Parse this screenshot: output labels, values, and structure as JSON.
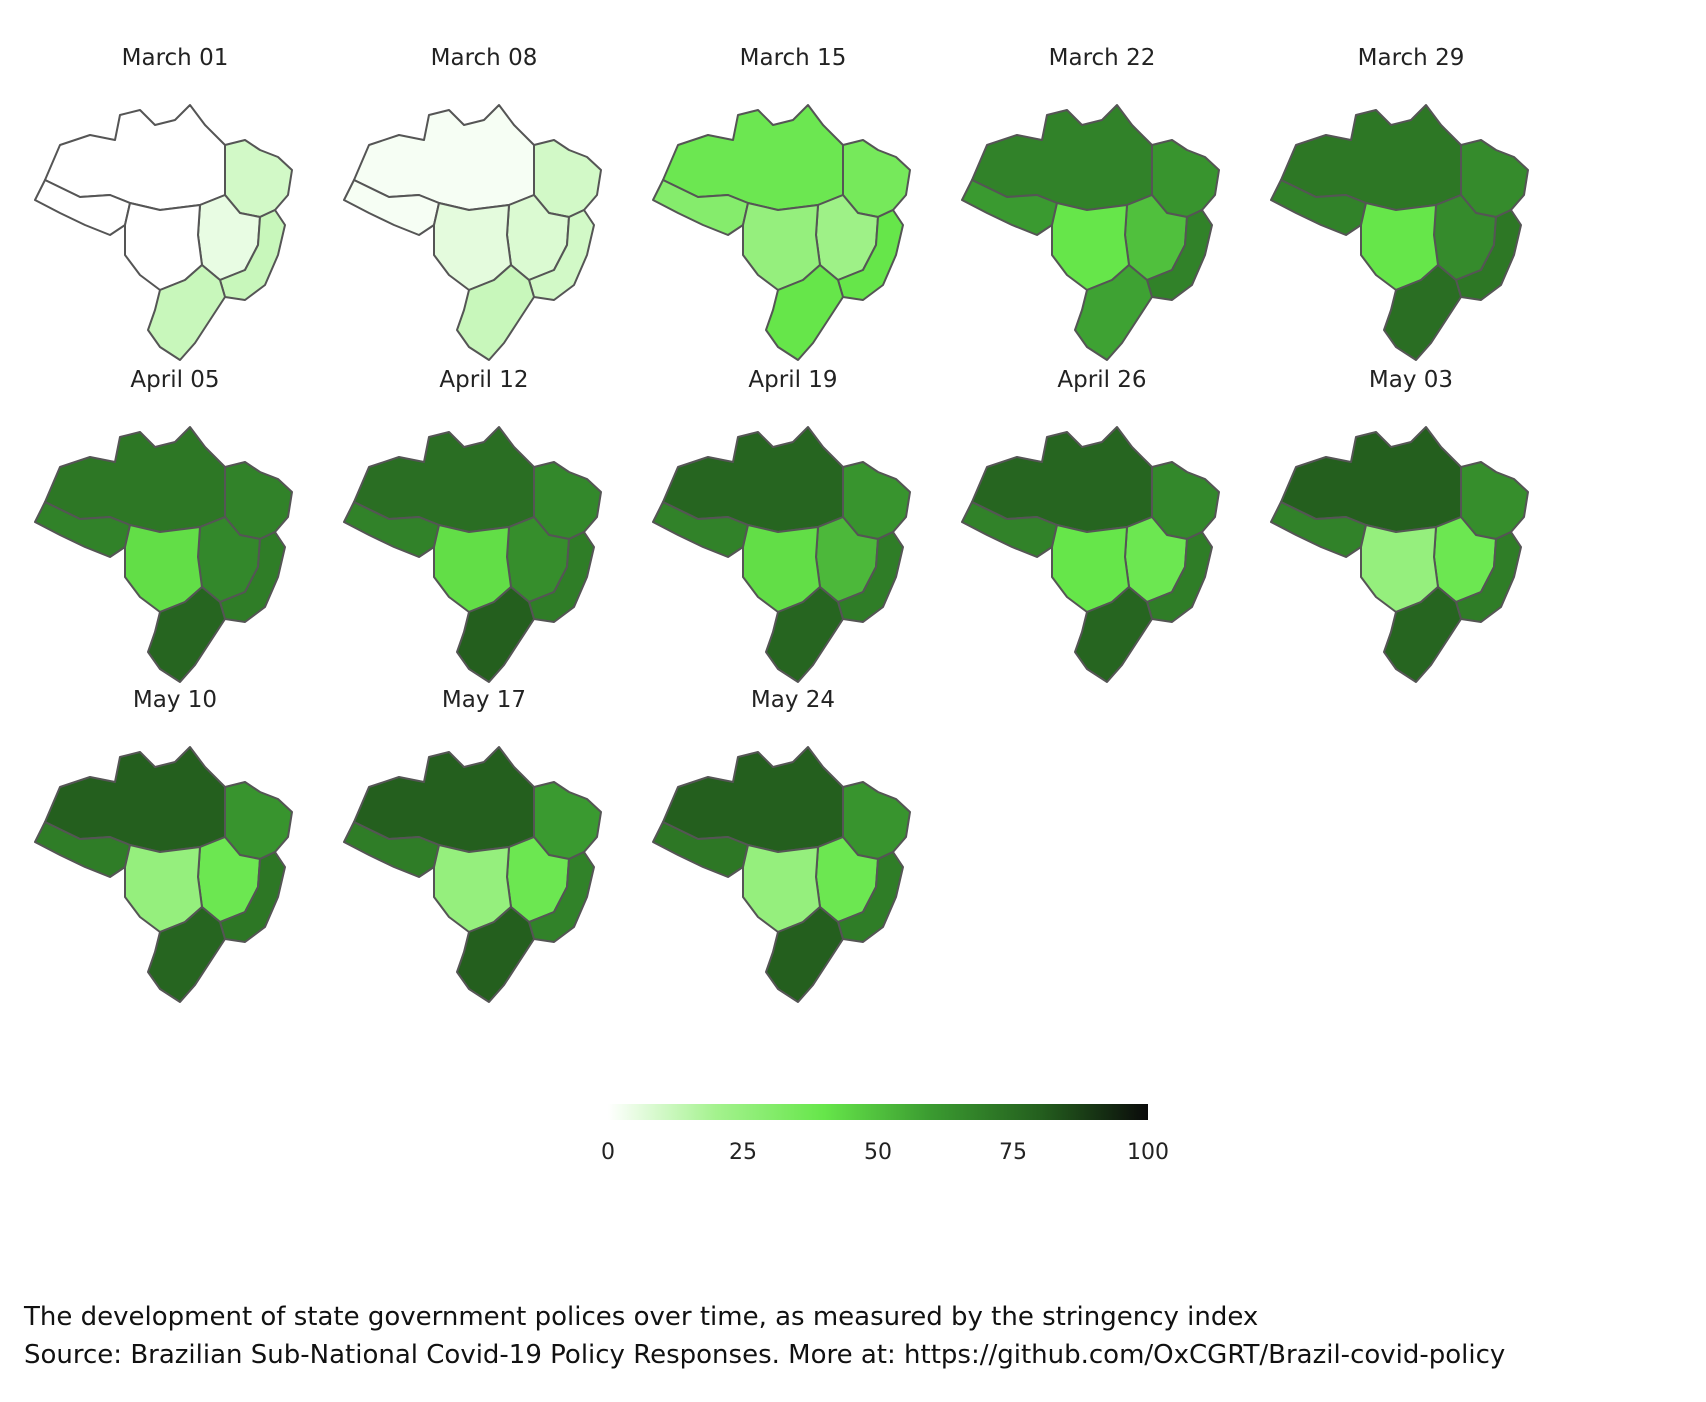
{
  "figure": {
    "colors": {
      "scale": [
        "#ffffff",
        "#a4f28e",
        "#66e64a",
        "#3a9a30",
        "#245f1e",
        "#0a0a0a"
      ],
      "outline": "#555555"
    },
    "legend": {
      "ticks": [
        "0",
        "25",
        "50",
        "75",
        "100"
      ],
      "min": 0,
      "max": 100
    },
    "panels": [
      {
        "title": "March 01",
        "values": {
          "north": 0,
          "northwest": 0,
          "ne": 10,
          "central": 5,
          "center_west": 0,
          "southeast": 12,
          "south": 12
        }
      },
      {
        "title": "March 08",
        "values": {
          "north": 2,
          "northwest": 2,
          "ne": 10,
          "central": 8,
          "center_west": 6,
          "southeast": 10,
          "south": 12
        }
      },
      {
        "title": "March 15",
        "values": {
          "north": 38,
          "northwest": 30,
          "ne": 35,
          "central": 22,
          "center_west": 25,
          "southeast": 40,
          "south": 40
        }
      },
      {
        "title": "March 22",
        "values": {
          "north": 68,
          "northwest": 60,
          "ne": 62,
          "central": 50,
          "center_west": 40,
          "southeast": 68,
          "south": 58
        }
      },
      {
        "title": "March 29",
        "values": {
          "north": 72,
          "northwest": 68,
          "ne": 65,
          "central": 65,
          "center_west": 40,
          "southeast": 72,
          "south": 75
        }
      },
      {
        "title": "April 05",
        "values": {
          "north": 72,
          "northwest": 68,
          "ne": 68,
          "central": 66,
          "center_west": 42,
          "southeast": 70,
          "south": 78
        }
      },
      {
        "title": "April 12",
        "values": {
          "north": 75,
          "northwest": 68,
          "ne": 66,
          "central": 64,
          "center_west": 42,
          "southeast": 70,
          "south": 80
        }
      },
      {
        "title": "April 19",
        "values": {
          "north": 78,
          "northwest": 68,
          "ne": 62,
          "central": 52,
          "center_west": 42,
          "southeast": 70,
          "south": 78
        }
      },
      {
        "title": "April 26",
        "values": {
          "north": 78,
          "northwest": 68,
          "ne": 66,
          "central": 38,
          "center_west": 40,
          "southeast": 70,
          "south": 78
        }
      },
      {
        "title": "May 03",
        "values": {
          "north": 80,
          "northwest": 68,
          "ne": 64,
          "central": 38,
          "center_west": 25,
          "southeast": 70,
          "south": 78
        }
      },
      {
        "title": "May 10",
        "values": {
          "north": 80,
          "northwest": 70,
          "ne": 62,
          "central": 38,
          "center_west": 25,
          "southeast": 72,
          "south": 78
        }
      },
      {
        "title": "May 17",
        "values": {
          "north": 80,
          "northwest": 70,
          "ne": 60,
          "central": 38,
          "center_west": 25,
          "southeast": 68,
          "south": 80
        }
      },
      {
        "title": "May 24",
        "values": {
          "north": 80,
          "northwest": 72,
          "ne": 62,
          "central": 38,
          "center_west": 25,
          "southeast": 70,
          "south": 80
        }
      }
    ]
  },
  "caption": {
    "line1": "The development of state government polices over time, as measured by the stringency index",
    "line2": "Source: Brazilian Sub-National Covid-19 Policy Responses. More at: https://github.com/OxCGRT/Brazil-covid-policy"
  }
}
